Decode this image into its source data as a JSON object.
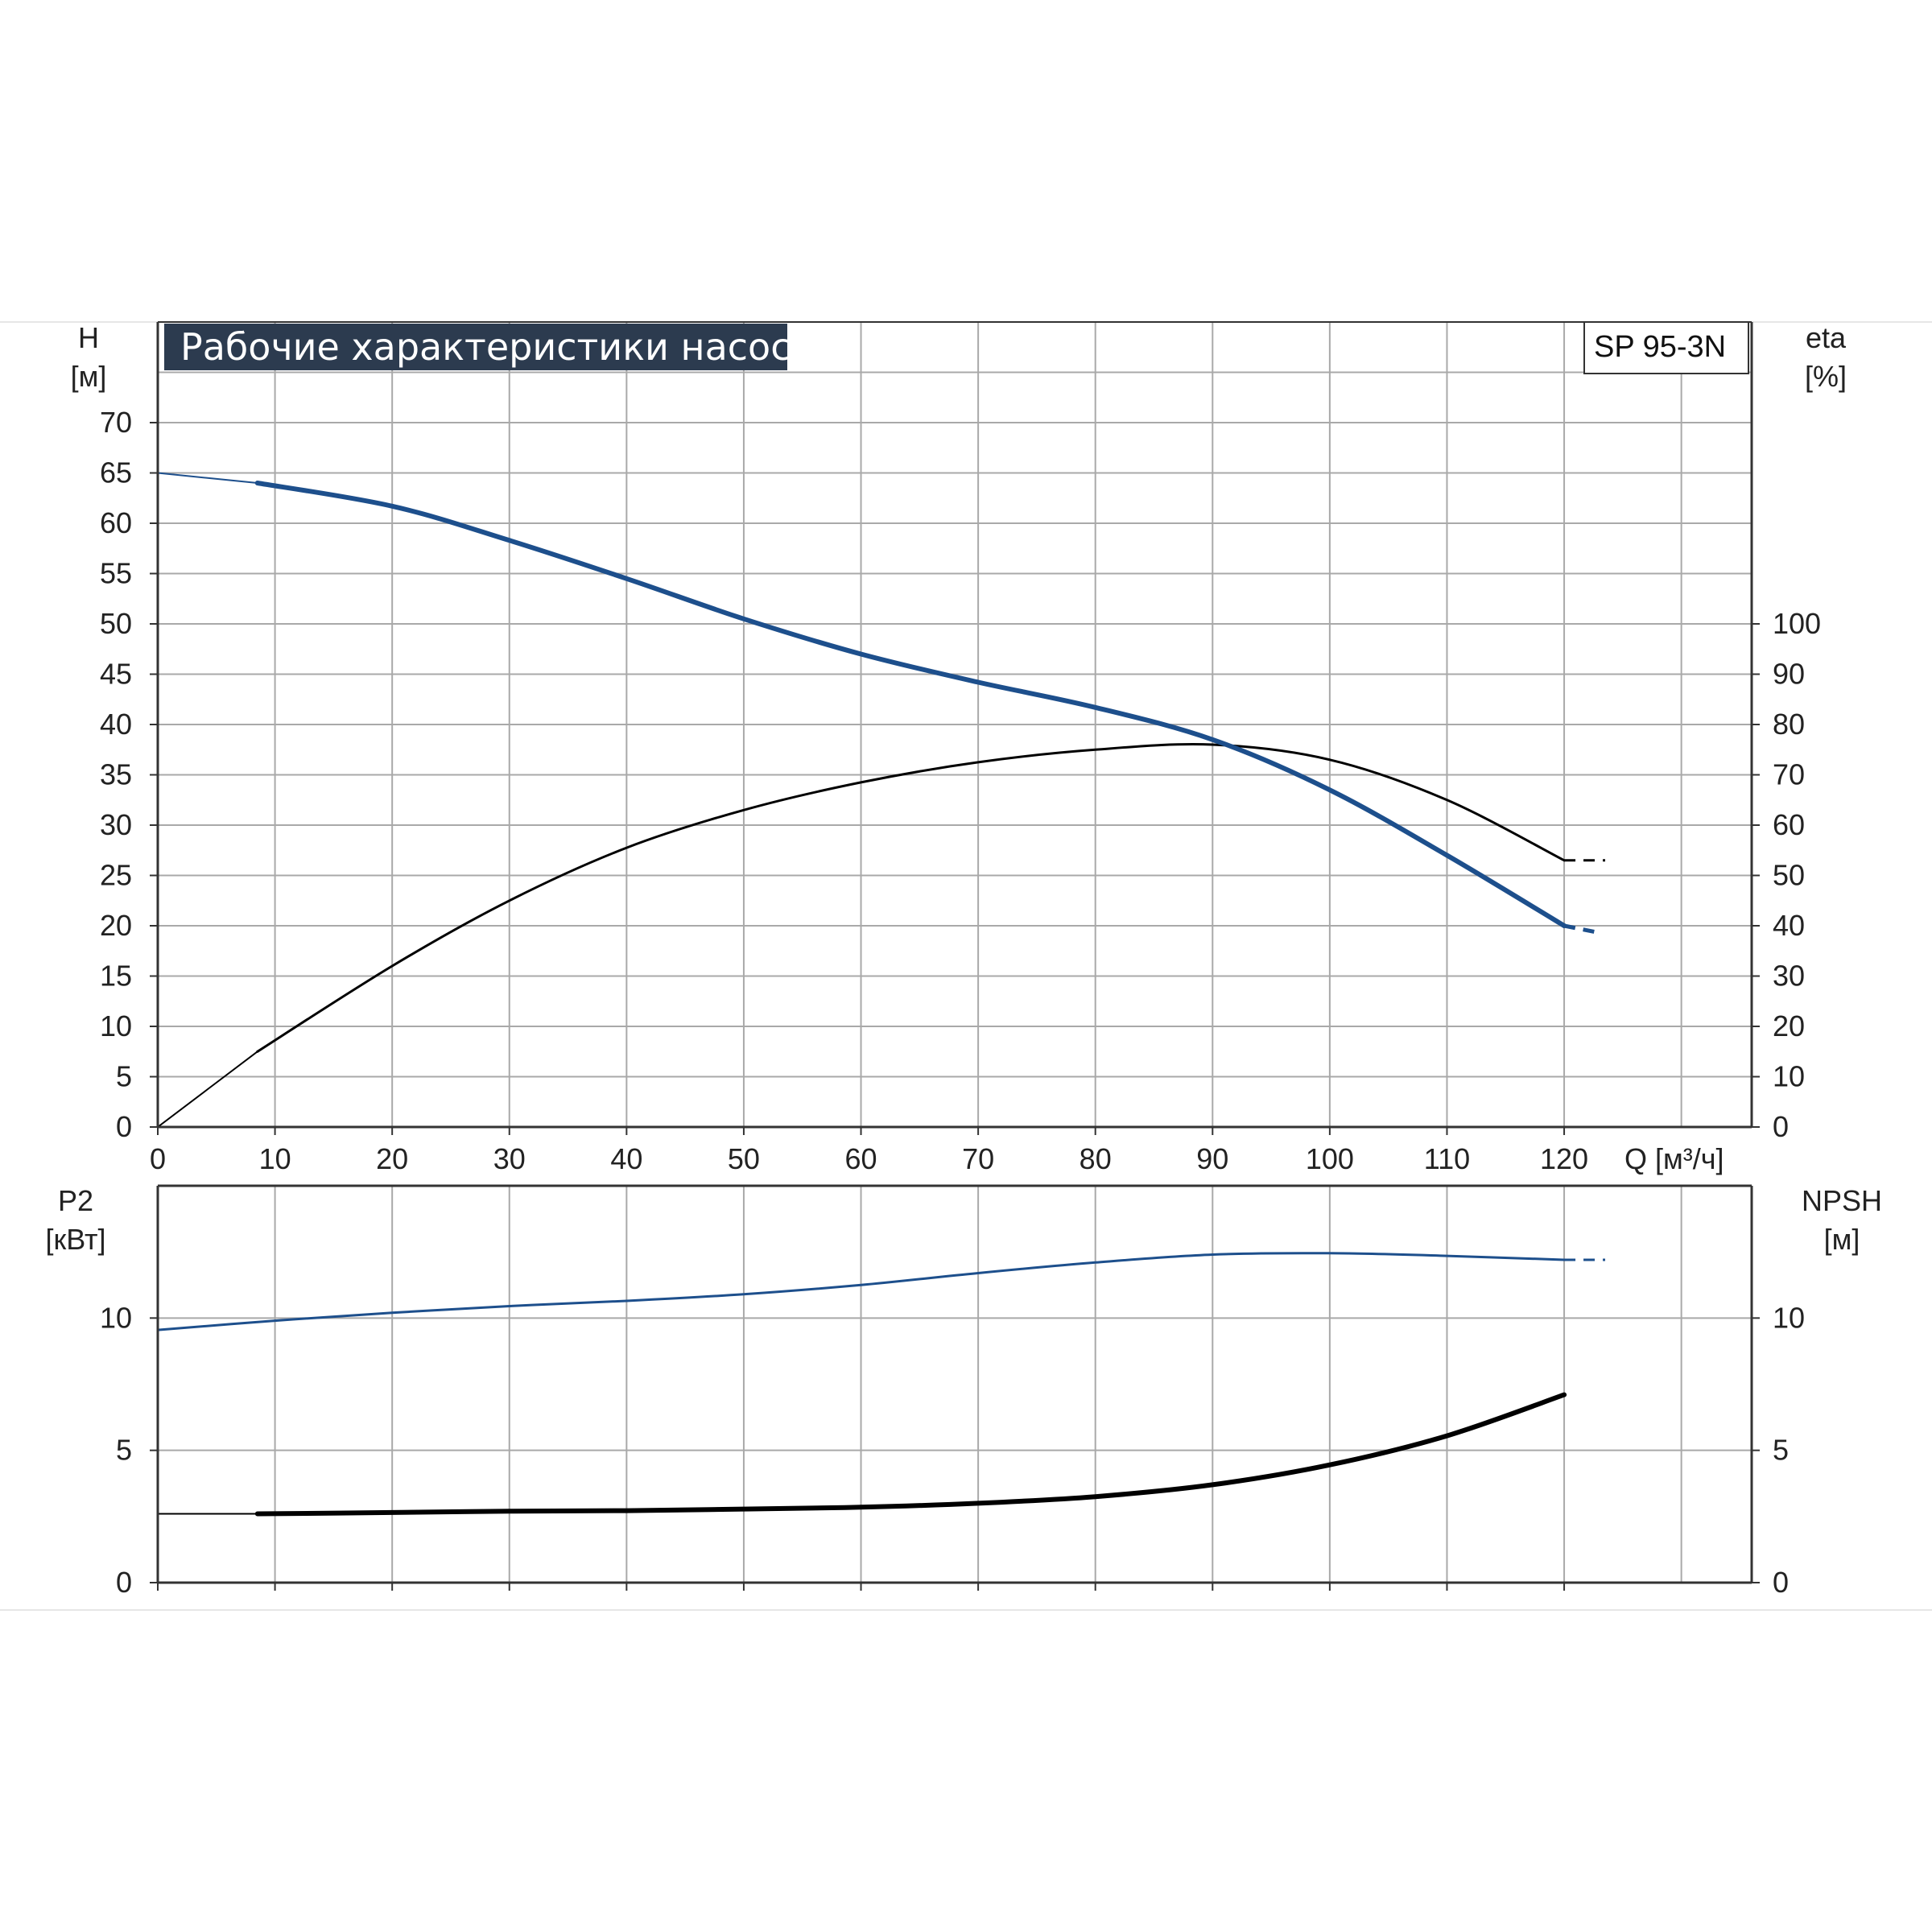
{
  "title": "Рабочие характеристики насоса",
  "model": "SP 95-3N",
  "colors": {
    "grid": "#a9a9a9",
    "axis": "#333333",
    "title_bg": "#2c3b4f",
    "blue": "#1d4f8c",
    "black": "#000000"
  },
  "chart_data": [
    {
      "type": "line",
      "panel": "top",
      "x_ticks": [
        "0",
        "10",
        "20",
        "30",
        "40",
        "50",
        "60",
        "70",
        "80",
        "90",
        "100",
        "110",
        "120"
      ],
      "xlabel": "Q [м³/ч]",
      "xlim": [
        0,
        136
      ],
      "left_axis": {
        "label_line1": "H",
        "label_line2": "[м]",
        "ylim": [
          0,
          80
        ],
        "ticks": [
          "0",
          "5",
          "10",
          "15",
          "20",
          "25",
          "30",
          "35",
          "40",
          "45",
          "50",
          "55",
          "60",
          "65",
          "70"
        ]
      },
      "right_axis": {
        "label_line1": "eta",
        "label_line2": "[%]",
        "ylim": [
          0,
          160
        ],
        "ticks": [
          "0",
          "10",
          "20",
          "30",
          "40",
          "50",
          "60",
          "70",
          "80",
          "90",
          "100"
        ]
      },
      "grid": true,
      "series": [
        {
          "key": "H",
          "axis": "left",
          "color": "#1d4f8c",
          "thin_segment": {
            "x": [
              0,
              8.5
            ],
            "y": [
              65,
              64
            ]
          },
          "x": [
            8.5,
            20,
            30,
            40,
            50,
            60,
            70,
            80,
            90,
            100,
            110,
            120
          ],
          "y": [
            64,
            61.7,
            58.3,
            54.5,
            50.5,
            47,
            44.2,
            41.7,
            38.5,
            33.5,
            27,
            20
          ],
          "dashed_extension": {
            "x": [
              120,
              123
            ],
            "y": [
              20,
              19.3
            ]
          }
        },
        {
          "key": "eta",
          "axis": "right",
          "color": "#000000",
          "thin_segment": {
            "x": [
              0,
              8.5
            ],
            "y": [
              0,
              15
            ]
          },
          "x": [
            8.5,
            20,
            30,
            40,
            50,
            60,
            70,
            80,
            90,
            100,
            110,
            120
          ],
          "y": [
            15,
            32,
            45,
            55.5,
            63,
            68.5,
            72.5,
            75,
            76,
            73,
            65,
            53
          ],
          "dashed_extension": {
            "x": [
              120,
              123.5
            ],
            "y": [
              53,
              53
            ]
          }
        }
      ]
    },
    {
      "type": "line",
      "panel": "bottom",
      "x_ticks": [
        "0",
        "10",
        "20",
        "30",
        "40",
        "50",
        "60",
        "70",
        "80",
        "90",
        "100",
        "110",
        "120"
      ],
      "xlim": [
        0,
        136
      ],
      "left_axis": {
        "label_line1": "P2",
        "label_line2": "[кВт]",
        "ylim": [
          0,
          15
        ],
        "ticks": [
          "0",
          "5",
          "10"
        ]
      },
      "right_axis": {
        "label_line1": "NPSH",
        "label_line2": "[м]",
        "ylim": [
          0,
          15
        ],
        "ticks": [
          "0",
          "5",
          "10"
        ]
      },
      "grid": true,
      "series": [
        {
          "key": "P2",
          "axis": "left",
          "color": "#1d4f8c",
          "x": [
            0,
            10,
            20,
            30,
            40,
            50,
            60,
            70,
            80,
            90,
            100,
            110,
            120
          ],
          "y": [
            9.55,
            9.9,
            10.2,
            10.45,
            10.65,
            10.9,
            11.25,
            11.7,
            12.1,
            12.4,
            12.45,
            12.35,
            12.2
          ],
          "dashed_extension": {
            "x": [
              120,
              123.5
            ],
            "y": [
              12.2,
              12.2
            ]
          }
        },
        {
          "key": "NPSH",
          "axis": "right",
          "color": "#000000",
          "thin_segment": {
            "x": [
              0,
              8.5
            ],
            "y": [
              2.6,
              2.6
            ]
          },
          "x": [
            8.5,
            20,
            30,
            40,
            50,
            60,
            70,
            80,
            90,
            100,
            110,
            120
          ],
          "y": [
            2.6,
            2.65,
            2.7,
            2.72,
            2.78,
            2.85,
            3.0,
            3.25,
            3.7,
            4.45,
            5.55,
            7.1
          ]
        }
      ]
    }
  ]
}
